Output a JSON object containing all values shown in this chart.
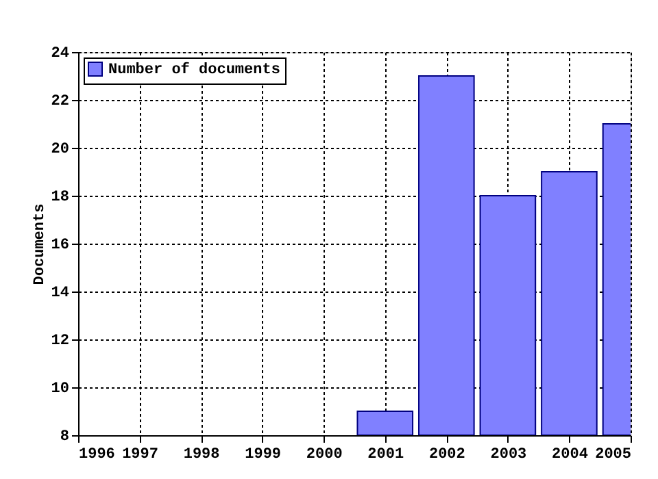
{
  "chart_data": {
    "type": "bar",
    "ylabel": "Documents",
    "x": [
      2001,
      2002,
      2003,
      2004,
      2005
    ],
    "series": [
      {
        "name": "Number of documents",
        "color": "#8080ff",
        "values": [
          9,
          23,
          18,
          19,
          21
        ]
      }
    ],
    "xlim": [
      1996,
      2005
    ],
    "xticks": [
      1996,
      1997,
      1998,
      1999,
      2000,
      2001,
      2002,
      2003,
      2004,
      2005
    ],
    "ylim": [
      8,
      24
    ],
    "yticks": [
      8,
      10,
      12,
      14,
      16,
      18,
      20,
      22,
      24
    ],
    "grid": true,
    "legend": "top left"
  }
}
